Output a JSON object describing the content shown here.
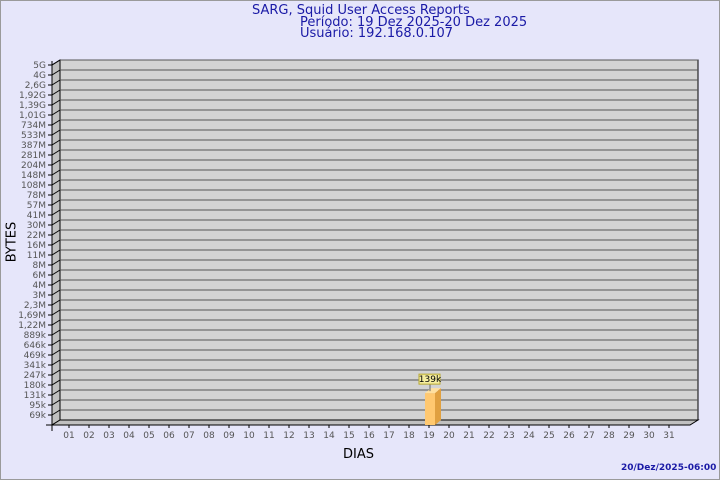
{
  "chart_data": {
    "type": "bar",
    "title": "SARG, Squid User Access Reports",
    "subtitle": [
      "Período: 19 Dez 2025-20 Dez 2025",
      "Usuário: 192.168.0.107"
    ],
    "xlabel": "DIAS",
    "ylabel": "BYTES",
    "y_scale": "log",
    "y_ticks": [
      "5G",
      "4G",
      "2,6G",
      "1,92G",
      "1,39G",
      "1,01G",
      "734M",
      "533M",
      "387M",
      "281M",
      "204M",
      "148M",
      "108M",
      "78M",
      "57M",
      "41M",
      "30M",
      "22M",
      "16M",
      "11M",
      "8M",
      "6M",
      "4M",
      "3M",
      "2,3M",
      "1,69M",
      "1,22M",
      "889k",
      "646k",
      "469k",
      "341k",
      "247k",
      "180k",
      "131k",
      "95k",
      "69k"
    ],
    "categories": [
      "01",
      "02",
      "03",
      "04",
      "05",
      "06",
      "07",
      "08",
      "09",
      "10",
      "11",
      "12",
      "13",
      "14",
      "15",
      "16",
      "17",
      "18",
      "19",
      "20",
      "21",
      "22",
      "23",
      "24",
      "25",
      "26",
      "27",
      "28",
      "29",
      "30",
      "31"
    ],
    "bars": [
      {
        "category": "19",
        "value": 139000,
        "label": "139k"
      }
    ],
    "grid": true,
    "colors": {
      "bar": "#ffc870",
      "bar_side": "#e0a040",
      "panel": "#d3d3d3",
      "title": "#1a1aa6"
    },
    "footer": "20/Dez/2025-06:00"
  }
}
